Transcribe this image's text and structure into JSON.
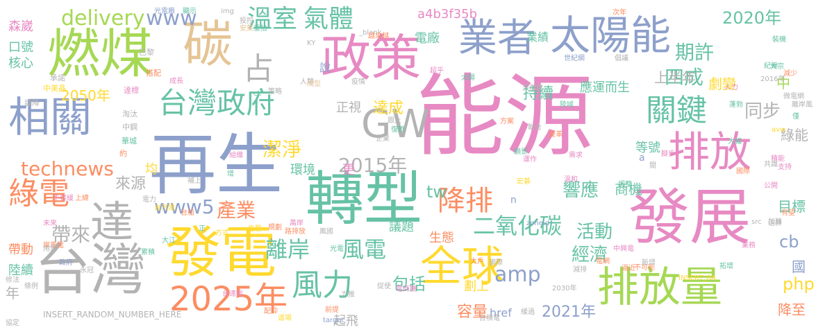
{
  "palette": {
    "pink": "#e78ac3",
    "green": "#a6d854",
    "yellow": "#ffd92f",
    "orange": "#fc8d62",
    "teal": "#66c2a5",
    "blue": "#8da0cb",
    "tan": "#e5c494",
    "gray": "#b3b3b3"
  },
  "words": [
    {
      "text": "能源",
      "color": "pink"
    },
    {
      "text": "再生",
      "color": "blue"
    },
    {
      "text": "轉型",
      "color": "teal"
    },
    {
      "text": "發電",
      "color": "yellow"
    },
    {
      "text": "發展",
      "color": "pink"
    },
    {
      "text": "台灣",
      "color": "gray"
    },
    {
      "text": "燃煤",
      "color": "green"
    },
    {
      "text": "碳",
      "color": "tan"
    },
    {
      "text": "政策",
      "color": "pink"
    },
    {
      "text": "太陽能",
      "color": "blue"
    },
    {
      "text": "業者",
      "color": "blue"
    },
    {
      "text": "全球",
      "color": "yellow"
    },
    {
      "text": "排放量",
      "color": "green"
    },
    {
      "text": "排放",
      "color": "pink"
    },
    {
      "text": "2025年",
      "color": "orange"
    },
    {
      "text": "台灣政府",
      "color": "teal"
    },
    {
      "text": "GW",
      "color": "gray"
    },
    {
      "text": "相關",
      "color": "blue"
    },
    {
      "text": "達",
      "color": "gray"
    },
    {
      "text": "綠電",
      "color": "orange"
    },
    {
      "text": "占",
      "color": "gray"
    },
    {
      "text": "關鍵",
      "color": "teal"
    },
    {
      "text": "風力",
      "color": "teal"
    },
    {
      "text": "降排",
      "color": "orange"
    },
    {
      "text": "溫室",
      "color": "teal"
    },
    {
      "text": "氣體",
      "color": "teal"
    },
    {
      "text": "delivery",
      "color": "green"
    },
    {
      "text": "www",
      "color": "blue"
    },
    {
      "text": "technews",
      "color": "orange"
    },
    {
      "text": "www5",
      "color": "blue"
    },
    {
      "text": "2015年",
      "color": "gray"
    },
    {
      "text": "2050年",
      "color": "yellow"
    },
    {
      "text": "離岸",
      "color": "teal"
    },
    {
      "text": "風電",
      "color": "teal"
    },
    {
      "text": "二氧化碳",
      "color": "teal"
    },
    {
      "text": "潔淨",
      "color": "yellow"
    },
    {
      "text": "產業",
      "color": "orange"
    },
    {
      "text": "帶來",
      "color": "gray"
    },
    {
      "text": "來源",
      "color": "gray"
    },
    {
      "text": "期許",
      "color": "teal"
    },
    {
      "text": "四成",
      "color": "teal"
    },
    {
      "text": "同步",
      "color": "gray"
    },
    {
      "text": "2020年",
      "color": "teal"
    },
    {
      "text": "上半年",
      "color": "gray"
    },
    {
      "text": "持續",
      "color": "teal"
    },
    {
      "text": "達成",
      "color": "yellow"
    },
    {
      "text": "響應",
      "color": "teal"
    },
    {
      "text": "活動",
      "color": "teal"
    },
    {
      "text": "經濟",
      "color": "teal"
    },
    {
      "text": "tw",
      "color": "teal"
    },
    {
      "text": "amp",
      "color": "blue"
    },
    {
      "text": "包括",
      "color": "teal"
    },
    {
      "text": "php",
      "color": "yellow"
    },
    {
      "text": "cb",
      "color": "blue"
    },
    {
      "text": "2021年",
      "color": "blue"
    },
    {
      "text": "容量",
      "color": "orange"
    },
    {
      "text": "中",
      "color": "green"
    },
    {
      "text": "劇變",
      "color": "yellow"
    },
    {
      "text": "綠能",
      "color": "gray"
    },
    {
      "text": "目標",
      "color": "teal"
    },
    {
      "text": "國",
      "color": "blue"
    },
    {
      "text": "降至",
      "color": "orange"
    },
    {
      "text": "商機",
      "color": "teal"
    },
    {
      "text": "生態",
      "color": "orange"
    },
    {
      "text": "議題",
      "color": "teal"
    },
    {
      "text": "劃上",
      "color": "yellow"
    },
    {
      "text": "等號",
      "color": "teal"
    },
    {
      "text": "環境",
      "color": "teal"
    },
    {
      "text": "更",
      "color": "pink"
    },
    {
      "text": "均",
      "color": "yellow"
    },
    {
      "text": "年",
      "color": "gray"
    },
    {
      "text": "陸續",
      "color": "teal"
    },
    {
      "text": "帶動",
      "color": "orange"
    },
    {
      "text": "森崴",
      "color": "pink"
    },
    {
      "text": "口號",
      "color": "teal"
    },
    {
      "text": "核心",
      "color": "teal"
    },
    {
      "text": "應運而生",
      "color": "teal"
    },
    {
      "text": "電廠",
      "color": "teal"
    },
    {
      "text": "a4b3f35b",
      "color": "pink"
    },
    {
      "text": "業績",
      "color": "teal"
    },
    {
      "text": "正視",
      "color": "gray"
    },
    {
      "text": "起飛",
      "color": "gray"
    },
    {
      "text": "href",
      "color": "blue"
    },
    {
      "text": "n",
      "color": "blue"
    },
    {
      "text": "a",
      "color": "blue"
    },
    {
      "text": "說",
      "color": "blue"
    },
    {
      "text": "光電廠",
      "color": "blue"
    },
    {
      "text": "顯示",
      "color": "teal"
    },
    {
      "text": "img",
      "color": "gray"
    },
    {
      "text": "投控",
      "color": "gray"
    },
    {
      "text": "安集",
      "color": "tan"
    },
    {
      "text": "重拾",
      "color": "teal"
    },
    {
      "text": "KY",
      "color": "gray"
    },
    {
      "text": "_blank",
      "color": "gray"
    },
    {
      "text": "次年",
      "color": "orange"
    },
    {
      "text": "減少",
      "color": "orange"
    },
    {
      "text": "巴黎",
      "color": "gray"
    },
    {
      "text": "搭配",
      "color": "orange"
    },
    {
      "text": "承諾",
      "color": "gray"
    },
    {
      "text": "中美晶",
      "color": "yellow"
    },
    {
      "text": "調降",
      "color": "gray"
    },
    {
      "text": "成長",
      "color": "pink"
    },
    {
      "text": "達標",
      "color": "pink"
    },
    {
      "text": "淘汰",
      "color": "gray"
    },
    {
      "text": "中鋼",
      "color": "gray"
    },
    {
      "text": "華城",
      "color": "teal"
    },
    {
      "text": "約",
      "color": "orange"
    },
    {
      "text": "策略",
      "color": "gray"
    },
    {
      "text": "ck",
      "color": "teal"
    },
    {
      "text": "人類",
      "color": "gray"
    },
    {
      "text": "疫情",
      "color": "gray"
    },
    {
      "text": "成型",
      "color": "tan"
    },
    {
      "text": "跟上",
      "color": "gray"
    },
    {
      "text": "企業",
      "color": "gray"
    },
    {
      "text": "復甦",
      "color": "teal"
    },
    {
      "text": "太陽",
      "color": "teal"
    },
    {
      "text": "超乎",
      "color": "pink"
    },
    {
      "text": "越來越",
      "color": "orange"
    },
    {
      "text": "世紀綱",
      "color": "blue"
    },
    {
      "text": "倡議",
      "color": "gray"
    },
    {
      "text": "方案",
      "color": "orange"
    },
    {
      "text": "蓬勃",
      "color": "teal"
    },
    {
      "text": "天然氣",
      "color": "gray"
    },
    {
      "text": "陸域",
      "color": "teal"
    },
    {
      "text": "2016年",
      "color": "gray"
    },
    {
      "text": "avw",
      "color": "yellow"
    },
    {
      "text": "聯合",
      "color": "gray"
    },
    {
      "text": "大幅",
      "color": "teal"
    },
    {
      "text": "共識",
      "color": "gray"
    },
    {
      "text": "支持",
      "color": "pink"
    },
    {
      "text": "公開",
      "color": "pink"
    },
    {
      "text": "有望",
      "color": "orange"
    },
    {
      "text": "估計",
      "color": "gray"
    },
    {
      "text": "加離",
      "color": "gray"
    },
    {
      "text": "src",
      "color": "gray"
    },
    {
      "text": "業務",
      "color": "pink"
    },
    {
      "text": "INSERT_RA",
      "color": "yellow"
    },
    {
      "text": "拓增",
      "color": "teal"
    },
    {
      "text": "不可能",
      "color": "orange"
    },
    {
      "text": "新增",
      "color": "gray"
    },
    {
      "text": "中興電",
      "color": "pink"
    },
    {
      "text": "溫和",
      "color": "pink"
    },
    {
      "text": "需求",
      "color": "pink"
    },
    {
      "text": "願景",
      "color": "teal"
    },
    {
      "text": "變革",
      "color": "orange"
    },
    {
      "text": "宏碁",
      "color": "yellow"
    },
    {
      "text": "zoneid",
      "color": "blue"
    },
    {
      "text": "大戶",
      "color": "orange"
    },
    {
      "text": "國際",
      "color": "gray"
    },
    {
      "text": "減排",
      "color": "gray"
    },
    {
      "text": "逼近",
      "color": "orange"
    },
    {
      "text": "電網",
      "color": "orange"
    },
    {
      "text": "台積電",
      "color": "gray"
    },
    {
      "text": "緩過",
      "color": "gray"
    },
    {
      "text": "2030年",
      "color": "gray"
    },
    {
      "text": "target",
      "color": "blue"
    },
    {
      "text": "促使",
      "color": "gray"
    },
    {
      "text": "前提",
      "color": "orange"
    },
    {
      "text": "力推",
      "color": "gray"
    },
    {
      "text": "電商機",
      "color": "pink"
    },
    {
      "text": "道場",
      "color": "yellow"
    },
    {
      "text": "配抑",
      "color": "orange"
    },
    {
      "text": "台達電",
      "color": "pink"
    },
    {
      "text": "INSERT_RANDOM_NUMBER_HERE",
      "color": "gray"
    },
    {
      "text": "協定",
      "color": "gray"
    },
    {
      "text": "修法",
      "color": "gray"
    },
    {
      "text": "條例",
      "color": "gray"
    },
    {
      "text": "岸風電",
      "color": "orange"
    },
    {
      "text": "未來",
      "color": "pink"
    },
    {
      "text": "用電",
      "color": "gray"
    },
    {
      "text": "不容緩",
      "color": "pink"
    },
    {
      "text": "政府",
      "color": "blue"
    },
    {
      "text": "上緯",
      "color": "orange"
    },
    {
      "text": "台汽電",
      "color": "yellow"
    },
    {
      "text": "電力",
      "color": "gray"
    },
    {
      "text": "永冠",
      "color": "gray"
    },
    {
      "text": "補上",
      "color": "gray"
    },
    {
      "text": "方式",
      "color": "yellow"
    },
    {
      "text": "增",
      "color": "teal"
    },
    {
      "text": "組織",
      "color": "pink"
    },
    {
      "text": "台船",
      "color": "orange"
    },
    {
      "text": "生醫",
      "color": "yellow"
    },
    {
      "text": "規劃",
      "color": "orange"
    },
    {
      "text": "路排放",
      "color": "orange"
    },
    {
      "text": "累積",
      "color": "teal"
    },
    {
      "text": "大江",
      "color": "teal"
    },
    {
      "text": "正",
      "color": "teal"
    },
    {
      "text": "萬岸",
      "color": "pink"
    },
    {
      "text": "鳳國",
      "color": "gray"
    },
    {
      "text": "光電",
      "color": "teal"
    },
    {
      "text": "間",
      "color": "gray"
    },
    {
      "text": "腳步",
      "color": "pink"
    },
    {
      "text": "調整",
      "color": "teal"
    },
    {
      "text": "國際",
      "color": "orange"
    },
    {
      "text": "運作",
      "color": "pink"
    },
    {
      "text": "積能",
      "color": "pink"
    },
    {
      "text": "裝機",
      "color": "teal"
    },
    {
      "text": "大宗",
      "color": "teal"
    },
    {
      "text": "紀錄",
      "color": "teal"
    },
    {
      "text": "微電網",
      "color": "gray"
    },
    {
      "text": "離岸風",
      "color": "gray"
    },
    {
      "text": "僅",
      "color": "teal"
    },
    {
      "text": "人力",
      "color": "pink"
    }
  ]
}
